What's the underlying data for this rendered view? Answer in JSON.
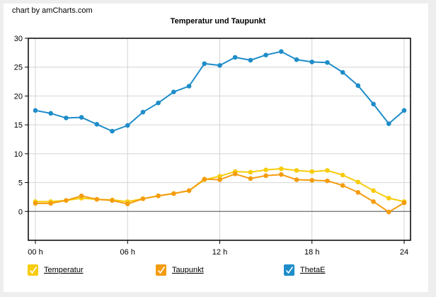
{
  "credit": "chart by amCharts.com",
  "chart_data": {
    "type": "line",
    "title": "Temperatur und Taupunkt",
    "xlabel": "",
    "ylabel": "",
    "x": [
      0,
      1,
      2,
      3,
      4,
      5,
      6,
      7,
      8,
      9,
      10,
      11,
      12,
      13,
      14,
      15,
      16,
      17,
      18,
      19,
      20,
      21,
      22,
      23,
      24
    ],
    "x_ticks": [
      {
        "value": 0,
        "label": "00 h"
      },
      {
        "value": 6,
        "label": "06 h"
      },
      {
        "value": 12,
        "label": "12 h"
      },
      {
        "value": 18,
        "label": "18 h"
      },
      {
        "value": 24,
        "label": "24"
      }
    ],
    "ylim": [
      -5,
      30
    ],
    "y_ticks": [
      0,
      5,
      10,
      15,
      20,
      25,
      30
    ],
    "grid": true,
    "legend_position": "bottom",
    "series": [
      {
        "name": "Temperatur",
        "color": "#f8cc0b",
        "values": [
          1.7,
          1.7,
          1.9,
          2.3,
          2.1,
          2.0,
          1.7,
          2.2,
          2.7,
          3.1,
          3.6,
          5.5,
          6.1,
          6.9,
          6.8,
          7.2,
          7.4,
          7.1,
          6.9,
          7.1,
          6.3,
          5.1,
          3.6,
          2.3,
          1.7
        ]
      },
      {
        "name": "Taupunkt",
        "color": "#f49c0f",
        "values": [
          1.4,
          1.4,
          1.9,
          2.7,
          2.1,
          1.9,
          1.3,
          2.2,
          2.7,
          3.1,
          3.6,
          5.6,
          5.5,
          6.5,
          5.7,
          6.2,
          6.4,
          5.5,
          5.4,
          5.3,
          4.5,
          3.3,
          1.7,
          -0.1,
          1.5
        ]
      },
      {
        "name": "ThetaE",
        "color": "#1e8dc9",
        "values": [
          17.5,
          17.0,
          16.2,
          16.3,
          15.1,
          13.9,
          14.9,
          17.2,
          18.8,
          20.7,
          21.7,
          25.6,
          25.3,
          26.7,
          26.2,
          27.1,
          27.7,
          26.3,
          25.9,
          25.8,
          24.1,
          21.8,
          18.6,
          15.2,
          17.5
        ]
      }
    ]
  },
  "legend": {
    "items": [
      {
        "label": "Temperatur",
        "color": "#f8cc0b",
        "checked": true,
        "icon": "check-icon"
      },
      {
        "label": "Taupunkt",
        "color": "#f49c0f",
        "checked": true,
        "icon": "check-icon"
      },
      {
        "label": "ThetaE",
        "color": "#1e8dc9",
        "checked": true,
        "icon": "check-icon"
      }
    ]
  }
}
